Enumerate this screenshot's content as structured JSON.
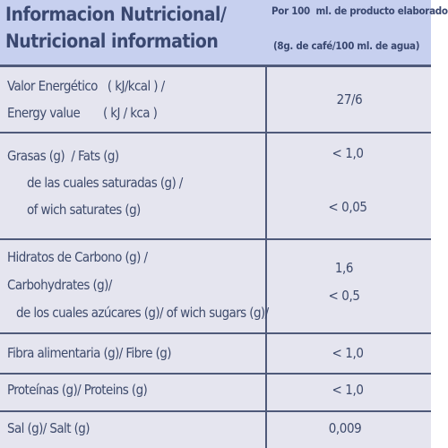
{
  "header": {
    "title": [
      "Informacion Nutricional/",
      "Nutricional information"
    ],
    "note": [
      "Por 100  ml. de producto elaborado",
      "(8g. de café/100 ml. de agua)"
    ]
  },
  "table": {
    "rows": [
      {
        "labels": [
          "Valor Energético   ( kJ/kcal ) /",
          "Energy value       ( kJ / kca )"
        ],
        "values": [
          "27/6"
        ]
      },
      {
        "labels": [
          "Grasas (g)  / Fats (g)",
          "de las cuales saturadas (g) /",
          "of wich saturates (g)"
        ],
        "values": [
          "< 1,0",
          "< 0,05"
        ]
      },
      {
        "labels": [
          "Hidratos de Carbono (g) /",
          "Carbohydrates (g)/",
          "de los cuales azúcares (g)/ of wich sugars (g)/"
        ],
        "values": [
          "1,6",
          "< 0,5"
        ]
      },
      {
        "labels": [
          "Fibra alimentaria (g)/ Fibre (g)"
        ],
        "values": [
          "< 1,0"
        ]
      },
      {
        "labels": [
          "Proteínas (g)/ Proteins (g)"
        ],
        "values": [
          "< 1,0"
        ]
      },
      {
        "labels": [
          "Sal (g)/ Salt (g)"
        ],
        "values": [
          "0,009"
        ]
      }
    ]
  }
}
